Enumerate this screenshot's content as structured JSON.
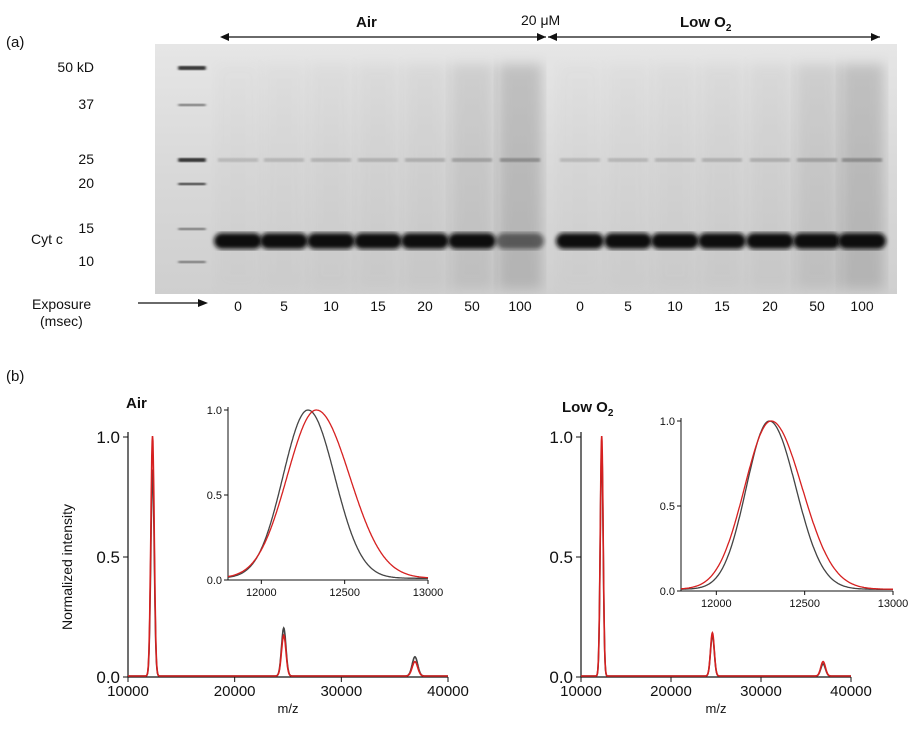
{
  "panel_a": {
    "label": "(a)",
    "condition_left": "Air",
    "condition_right": "Low O",
    "condition_right_sub": "2",
    "concentration": "20 μM",
    "markers": [
      {
        "text": "50 kD",
        "kd": 50
      },
      {
        "text": "37",
        "kd": 37
      },
      {
        "text": "25",
        "kd": 25
      },
      {
        "text": "20",
        "kd": 20
      },
      {
        "text": "15",
        "kd": 15
      },
      {
        "text": "10",
        "kd": 10
      }
    ],
    "protein_label": "Cyt c",
    "exposure_label": "Exposure",
    "exposure_unit": "(msec)",
    "exposures_air": [
      "0",
      "5",
      "10",
      "15",
      "20",
      "50",
      "100"
    ],
    "exposures_low": [
      "0",
      "5",
      "10",
      "15",
      "20",
      "50",
      "100"
    ],
    "colors": {
      "gel_background": "#d6d6d6",
      "band": "#111111"
    }
  },
  "panel_b": {
    "label": "(b)",
    "chart_data": [
      {
        "type": "line",
        "title": "Air",
        "xlabel": "m/z",
        "ylabel": "Normalized intensity",
        "xlim": [
          10000,
          40000
        ],
        "ylim": [
          0,
          1.0
        ],
        "xticks": [
          "10000",
          "20000",
          "30000",
          "40000"
        ],
        "yticks": [
          "0.0",
          "0.5",
          "1.0"
        ],
        "series": [
          {
            "color": "#444444",
            "peaks": [
              {
                "x": 12300,
                "y": 0.86
              },
              {
                "x": 24600,
                "y": 0.2
              },
              {
                "x": 36900,
                "y": 0.08
              }
            ]
          },
          {
            "color": "#d62020",
            "peaks": [
              {
                "x": 12300,
                "y": 1.0
              },
              {
                "x": 24600,
                "y": 0.17
              },
              {
                "x": 36900,
                "y": 0.06
              }
            ]
          }
        ],
        "inset": {
          "xlim": [
            11800,
            13000
          ],
          "ylim": [
            0,
            1.0
          ],
          "xticks": [
            "12000",
            "12500",
            "13000"
          ],
          "yticks": [
            "0.0",
            "0.5",
            "1.0"
          ],
          "series": [
            {
              "color": "#444444",
              "center": 12280,
              "left_width": 150,
              "right_width": 160
            },
            {
              "color": "#d62020",
              "center": 12330,
              "left_width": 175,
              "right_width": 200
            }
          ]
        }
      },
      {
        "type": "line",
        "title": "Low O",
        "title_sub": "2",
        "xlabel": "m/z",
        "ylabel": "",
        "xlim": [
          10000,
          40000
        ],
        "ylim": [
          0,
          1.0
        ],
        "xticks": [
          "10000",
          "20000",
          "30000",
          "40000"
        ],
        "yticks": [
          "0.0",
          "0.5",
          "1.0"
        ],
        "series": [
          {
            "color": "#444444",
            "peaks": [
              {
                "x": 12300,
                "y": 0.95
              },
              {
                "x": 24600,
                "y": 0.17
              },
              {
                "x": 36900,
                "y": 0.05
              }
            ]
          },
          {
            "color": "#d62020",
            "peaks": [
              {
                "x": 12300,
                "y": 1.0
              },
              {
                "x": 24600,
                "y": 0.18
              },
              {
                "x": 36900,
                "y": 0.06
              }
            ]
          }
        ],
        "inset": {
          "xlim": [
            11800,
            13000
          ],
          "ylim": [
            0,
            1.0
          ],
          "xticks": [
            "12000",
            "12500",
            "13000"
          ],
          "yticks": [
            "0.0",
            "0.5",
            "1.0"
          ],
          "series": [
            {
              "color": "#444444",
              "center": 12300,
              "left_width": 130,
              "right_width": 150
            },
            {
              "color": "#d62020",
              "center": 12310,
              "left_width": 150,
              "right_width": 175
            }
          ]
        }
      }
    ]
  }
}
